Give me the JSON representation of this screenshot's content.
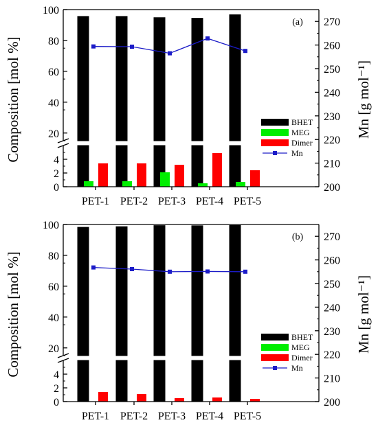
{
  "chart_data": [
    {
      "type": "bar",
      "panel_label": "(a)",
      "categories": [
        "PET-1",
        "PET-2",
        "PET-3",
        "PET-4",
        "PET-5"
      ],
      "series": [
        {
          "name": "BHET",
          "color": "#000000",
          "values": [
            95.8,
            95.8,
            95.0,
            94.6,
            96.9
          ]
        },
        {
          "name": "MEG",
          "color": "#00ee00",
          "values": [
            0.8,
            0.8,
            2.1,
            0.5,
            0.7
          ]
        },
        {
          "name": "Dimer",
          "color": "#ff0000",
          "values": [
            3.4,
            3.4,
            3.2,
            4.9,
            2.4
          ]
        },
        {
          "name": "Mn",
          "color": "#1c1cc8",
          "type": "line",
          "axis": "right",
          "values": [
            259.4,
            259.3,
            256.5,
            262.8,
            257.5
          ]
        }
      ],
      "ylabel": "Composition [mol %]",
      "y2label": "Mn [g mol⁻¹]",
      "y_upper": {
        "range": [
          15,
          100
        ],
        "ticks": [
          "20",
          "40",
          "60",
          "80",
          "100"
        ]
      },
      "y_lower": {
        "range": [
          0,
          6
        ],
        "ticks": [
          "0",
          "2",
          "4"
        ]
      },
      "y2lim": [
        200,
        275
      ],
      "y2_ticks": [
        "200",
        "210",
        "220",
        "230",
        "240",
        "250",
        "260",
        "270"
      ],
      "axis_break": true,
      "legend_position": "right-middle"
    },
    {
      "type": "bar",
      "panel_label": "(b)",
      "categories": [
        "PET-1",
        "PET-2",
        "PET-3",
        "PET-4",
        "PET-5"
      ],
      "series": [
        {
          "name": "BHET",
          "color": "#000000",
          "values": [
            98.4,
            98.8,
            99.5,
            99.4,
            99.6
          ]
        },
        {
          "name": "MEG",
          "color": "#00ee00",
          "values": [
            0,
            0,
            0,
            0,
            0
          ]
        },
        {
          "name": "Dimer",
          "color": "#ff0000",
          "values": [
            1.4,
            1.1,
            0.5,
            0.6,
            0.4
          ]
        },
        {
          "name": "Mn",
          "color": "#1c1cc8",
          "type": "line",
          "axis": "right",
          "values": [
            256.8,
            256.1,
            255.0,
            255.1,
            255.0
          ]
        }
      ],
      "ylabel": "Composition [mol %]",
      "y2label": "Mn [g mol⁻¹]",
      "y_upper": {
        "range": [
          15,
          100
        ],
        "ticks": [
          "20",
          "40",
          "60",
          "80",
          "100"
        ]
      },
      "y_lower": {
        "range": [
          0,
          6
        ],
        "ticks": [
          "0",
          "2",
          "4"
        ]
      },
      "y2lim": [
        200,
        275
      ],
      "y2_ticks": [
        "200",
        "210",
        "220",
        "230",
        "240",
        "250",
        "260",
        "270"
      ],
      "axis_break": true,
      "legend_position": "right-middle"
    }
  ]
}
